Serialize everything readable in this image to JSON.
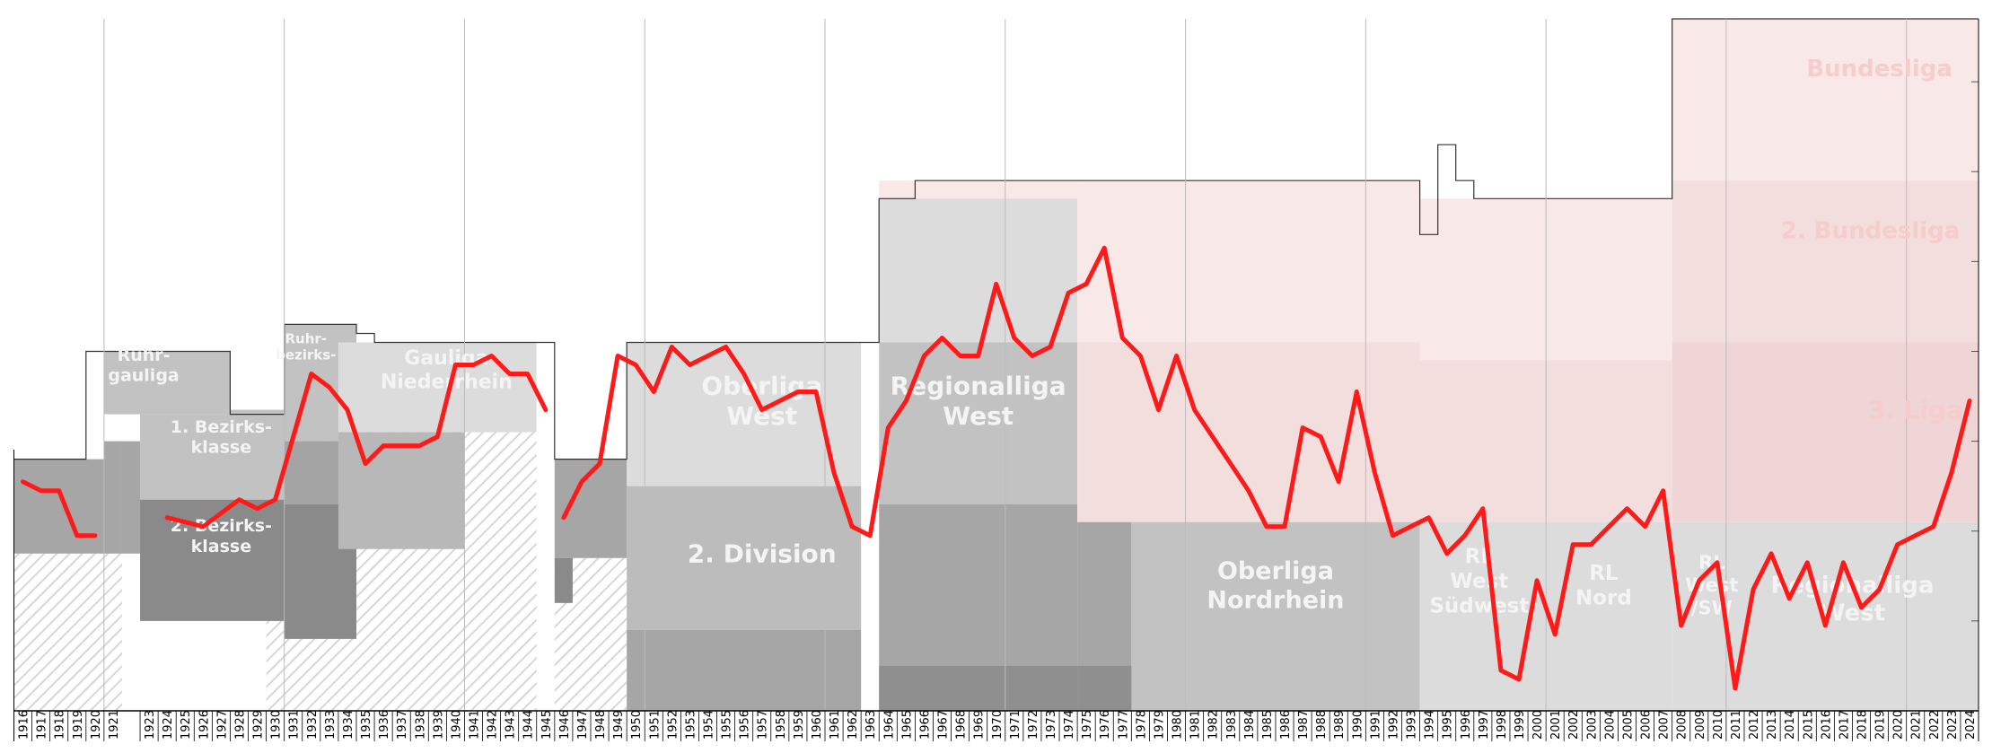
{
  "chart_data": {
    "type": "line",
    "title": "",
    "xlabel": "",
    "ylabel": "",
    "x_range": [
      1916,
      2024
    ],
    "y_range": [
      0,
      77
    ],
    "colors": {
      "line": "#ff1a1a",
      "top_tier_bg": "#f8e8e8",
      "pink_mid": "#f3dede",
      "pink_dark": "#efd5d5",
      "gray_light": "#dcdcdc",
      "gray_mid": "#c2c2c2",
      "gray_dark": "#a6a6a6",
      "gray_darker": "#8f8f8f",
      "label_color": "#f4f4f4",
      "pink_label_color": "#f6cccc"
    },
    "league_labels": [
      {
        "text": "Ruhr-\ngauliga"
      },
      {
        "text": "Ruhr-\nbezirks-"
      },
      {
        "text": "1. Bezirks-\nklasse"
      },
      {
        "text": "2. Bezirks-\nklasse"
      },
      {
        "text": "Gauliga\nNiederrhein"
      },
      {
        "text": "Oberliga\nWest"
      },
      {
        "text": "2. Division"
      },
      {
        "text": "Regionalliga\nWest"
      },
      {
        "text": "Oberliga\nNordrhein"
      },
      {
        "text": "RL\nWest\nSüdwest"
      },
      {
        "text": "RL\nNord"
      },
      {
        "text": "RL\nWest\n/SW"
      },
      {
        "text": "Regionalliga\nWest"
      },
      {
        "text": "Bundesliga"
      },
      {
        "text": "2. Bundesliga"
      },
      {
        "text": "3. Liga"
      }
    ],
    "x_ticks": [
      1916,
      1917,
      1918,
      1919,
      1920,
      1921,
      1923,
      1924,
      1925,
      1926,
      1927,
      1928,
      1929,
      1930,
      1931,
      1932,
      1933,
      1934,
      1935,
      1936,
      1937,
      1938,
      1939,
      1940,
      1941,
      1942,
      1943,
      1944,
      1945,
      1946,
      1947,
      1948,
      1949,
      1950,
      1951,
      1952,
      1953,
      1954,
      1955,
      1956,
      1957,
      1958,
      1959,
      1960,
      1961,
      1962,
      1963,
      1964,
      1965,
      1966,
      1967,
      1968,
      1969,
      1970,
      1971,
      1972,
      1973,
      1974,
      1975,
      1976,
      1977,
      1978,
      1979,
      1980,
      1981,
      1982,
      1983,
      1984,
      1985,
      1986,
      1987,
      1988,
      1989,
      1990,
      1991,
      1992,
      1993,
      1994,
      1995,
      1996,
      1997,
      1998,
      1999,
      2000,
      2001,
      2002,
      2003,
      2004,
      2005,
      2006,
      2007,
      2008,
      2009,
      2010,
      2011,
      2012,
      2013,
      2014,
      2015,
      2016,
      2017,
      2018,
      2019,
      2020,
      2021,
      2022,
      2023,
      2024
    ],
    "series": [
      {
        "segments": [
          [
            [
              1916,
              25.5
            ],
            [
              1917,
              24.5
            ],
            [
              1918,
              24.5
            ],
            [
              1919,
              19.5
            ],
            [
              1920,
              19.5
            ]
          ],
          [
            [
              1924,
              21.5
            ],
            [
              1925,
              21
            ],
            [
              1926,
              20.5
            ],
            [
              1927,
              22
            ],
            [
              1928,
              23.5
            ],
            [
              1929,
              22.5
            ],
            [
              1930,
              23.5
            ],
            [
              1931,
              30.5
            ],
            [
              1932,
              37.5
            ],
            [
              1933,
              36
            ],
            [
              1934,
              33.5
            ],
            [
              1935,
              27.5
            ],
            [
              1936,
              29.5
            ],
            [
              1937,
              29.5
            ],
            [
              1938,
              29.5
            ],
            [
              1939,
              30.5
            ],
            [
              1940,
              38.5
            ],
            [
              1941,
              38.5
            ],
            [
              1942,
              39.5
            ],
            [
              1943,
              37.5
            ],
            [
              1944,
              37.5
            ],
            [
              1945,
              33.5
            ]
          ],
          [
            [
              1946,
              21.5
            ],
            [
              1947,
              25.5
            ],
            [
              1948,
              27.5
            ],
            [
              1949,
              39.5
            ],
            [
              1950,
              38.5
            ],
            [
              1951,
              35.5
            ],
            [
              1952,
              40.5
            ],
            [
              1953,
              38.5
            ],
            [
              1954,
              39.5
            ],
            [
              1955,
              40.5
            ],
            [
              1956,
              37.5
            ],
            [
              1957,
              33.5
            ],
            [
              1958,
              34.5
            ],
            [
              1959,
              35.5
            ],
            [
              1960,
              35.5
            ],
            [
              1961,
              26.5
            ],
            [
              1962,
              20.5
            ],
            [
              1963,
              19.5
            ],
            [
              1964,
              31.5
            ],
            [
              1965,
              34.5
            ],
            [
              1966,
              39.5
            ],
            [
              1967,
              41.5
            ],
            [
              1968,
              39.5
            ],
            [
              1969,
              39.5
            ],
            [
              1970,
              47.5
            ],
            [
              1971,
              41.5
            ],
            [
              1972,
              39.5
            ],
            [
              1973,
              40.5
            ],
            [
              1974,
              46.5
            ],
            [
              1975,
              47.5
            ],
            [
              1976,
              51.5
            ],
            [
              1977,
              41.5
            ],
            [
              1978,
              39.5
            ],
            [
              1979,
              33.5
            ],
            [
              1980,
              39.5
            ],
            [
              1981,
              33.5
            ],
            [
              1982,
              30.5
            ],
            [
              1983,
              27.5
            ],
            [
              1984,
              24.5
            ],
            [
              1985,
              20.5
            ],
            [
              1986,
              20.5
            ],
            [
              1987,
              31.5
            ],
            [
              1988,
              30.5
            ],
            [
              1989,
              25.5
            ],
            [
              1990,
              35.5
            ],
            [
              1991,
              26.5
            ],
            [
              1992,
              19.5
            ],
            [
              1993,
              20.5
            ],
            [
              1994,
              21.5
            ],
            [
              1995,
              17.5
            ],
            [
              1996,
              19.5
            ],
            [
              1997,
              22.5
            ],
            [
              1998,
              4.5
            ],
            [
              1999,
              3.5
            ],
            [
              2000,
              14.5
            ],
            [
              2001,
              8.5
            ],
            [
              2002,
              18.5
            ],
            [
              2003,
              18.5
            ],
            [
              2004,
              20.5
            ],
            [
              2005,
              22.5
            ],
            [
              2006,
              20.5
            ],
            [
              2007,
              24.5
            ],
            [
              2008,
              9.5
            ],
            [
              2009,
              14.5
            ],
            [
              2010,
              16.5
            ],
            [
              2011,
              2.5
            ],
            [
              2012,
              13.5
            ],
            [
              2013,
              17.5
            ],
            [
              2014,
              12.5
            ],
            [
              2015,
              16.5
            ],
            [
              2016,
              9.5
            ],
            [
              2017,
              16.5
            ],
            [
              2018,
              11.5
            ],
            [
              2019,
              13.5
            ],
            [
              2020,
              18.5
            ],
            [
              2021,
              19.5
            ],
            [
              2022,
              20.5
            ],
            [
              2023,
              26.5
            ],
            [
              2024,
              34.5
            ]
          ]
        ]
      }
    ]
  }
}
